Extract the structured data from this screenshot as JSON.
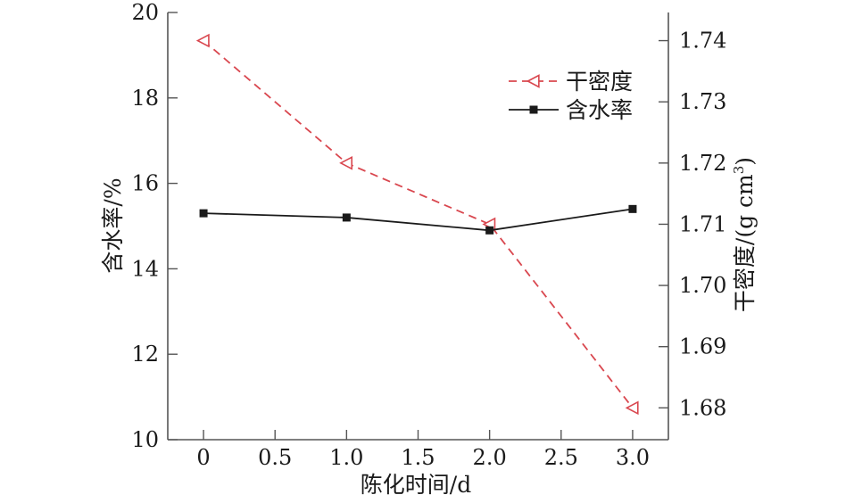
{
  "chart_data": {
    "type": "line",
    "xlabel": "陈化时间/d",
    "ylabel_left": "含水率/%",
    "ylabel_right_main": "干密度/(g cm",
    "ylabel_right_sup": "3",
    "ylabel_right_close": ")",
    "x_ticks": [
      "0",
      "0.5",
      "1.0",
      "1.5",
      "2.0",
      "2.5",
      "3.0"
    ],
    "xlim": [
      -0.25,
      3.25
    ],
    "y_left_ticks": [
      "10",
      "12",
      "14",
      "16",
      "18",
      "20"
    ],
    "ylim_left": [
      10,
      20
    ],
    "y_right_ticks": [
      "1.68",
      "1.69",
      "1.70",
      "1.71",
      "1.72",
      "1.73",
      "1.74"
    ],
    "ylim_right": [
      1.6748,
      1.7446
    ],
    "legend_position": "top-right",
    "series": [
      {
        "name": "干密度",
        "axis": "right",
        "color": "#d9474f",
        "line_style": "dashed",
        "marker": "open-triangle-left",
        "x": [
          0,
          1,
          2,
          3
        ],
        "values": [
          1.74,
          1.72,
          1.71,
          1.68
        ]
      },
      {
        "name": "含水率",
        "axis": "left",
        "color": "#1a1a1a",
        "line_style": "solid",
        "marker": "filled-square",
        "x": [
          0,
          1,
          2,
          3
        ],
        "values": [
          15.3,
          15.2,
          14.9,
          15.4
        ]
      }
    ]
  }
}
